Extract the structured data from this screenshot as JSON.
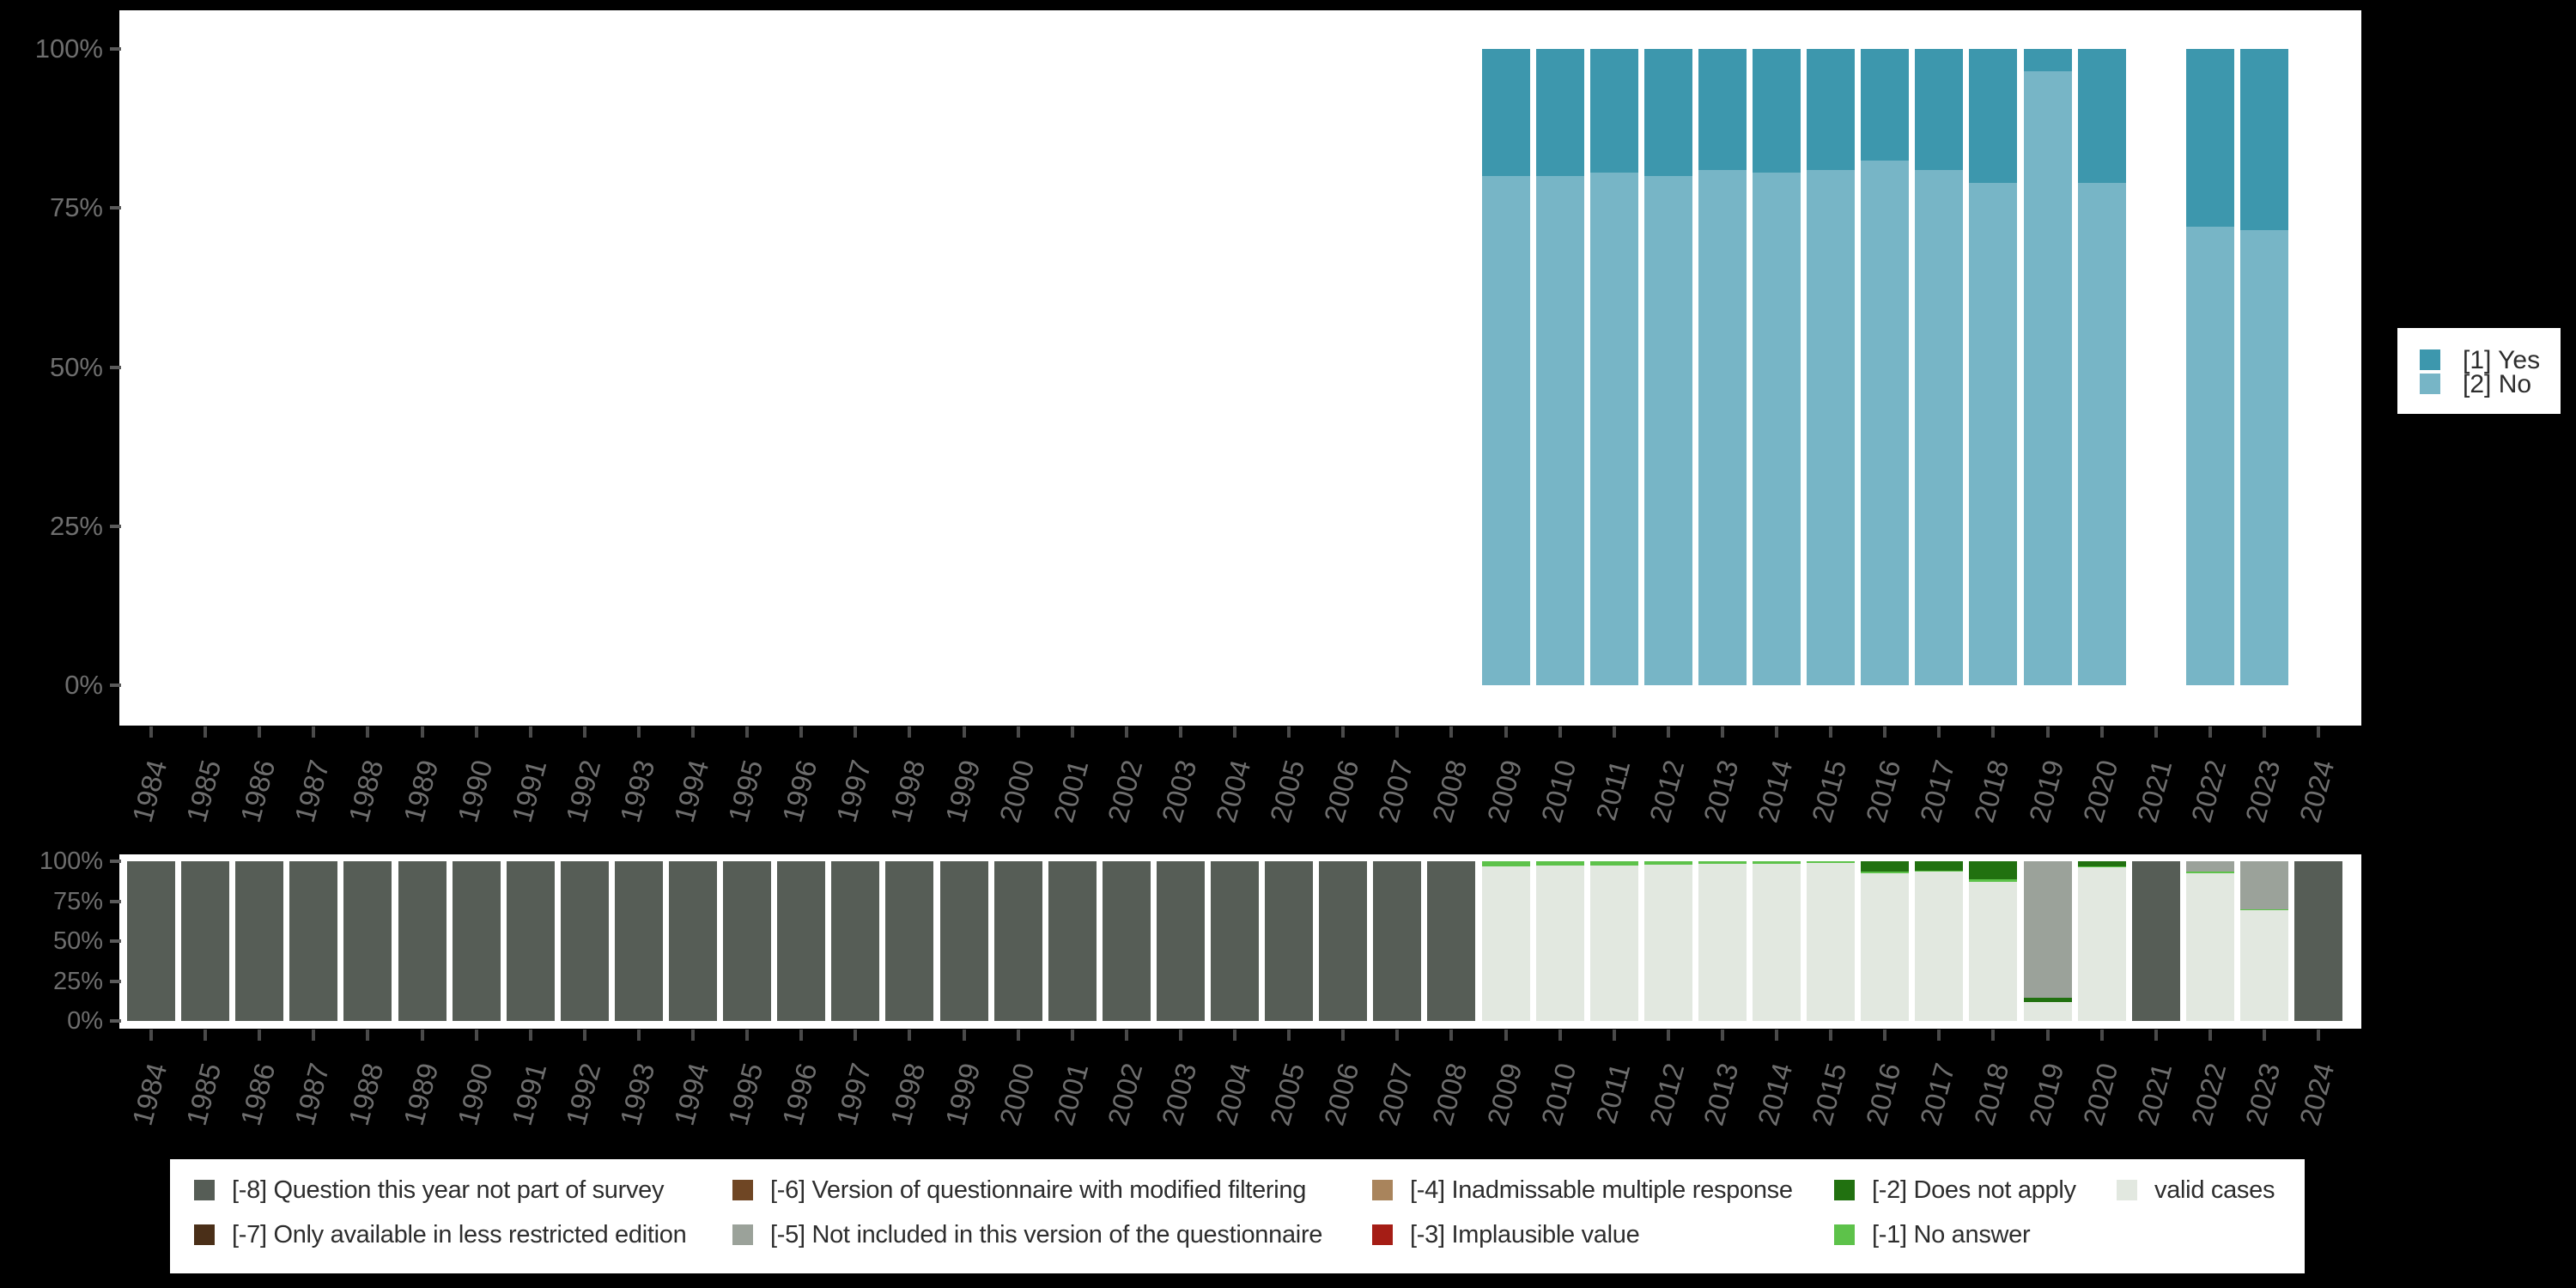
{
  "page": {
    "background": "#000000"
  },
  "colors": {
    "yes": "#3d97ad",
    "no": "#77b5c6",
    "-8": "#565d56",
    "-7": "#4a2f18",
    "-6": "#6f4624",
    "-5": "#9ba29a",
    "-4": "#a9845c",
    "-3": "#a51d15",
    "-2": "#217110",
    "-1": "#5dc24a",
    "valid": "#e2e8e0"
  },
  "years": [
    1984,
    1985,
    1986,
    1987,
    1988,
    1989,
    1990,
    1991,
    1992,
    1993,
    1994,
    1995,
    1996,
    1997,
    1998,
    1999,
    2000,
    2001,
    2002,
    2003,
    2004,
    2005,
    2006,
    2007,
    2008,
    2009,
    2010,
    2011,
    2012,
    2013,
    2014,
    2015,
    2016,
    2017,
    2018,
    2019,
    2020,
    2021,
    2022,
    2023,
    2024
  ],
  "legend_top": {
    "items": [
      {
        "label": "[1] Yes",
        "key": "yes"
      },
      {
        "label": "[2] No",
        "key": "no"
      }
    ]
  },
  "legend_bottom": {
    "items": [
      {
        "label": "[-8] Question this year not part of survey",
        "key": "-8",
        "col": 0,
        "row": 0
      },
      {
        "label": "[-7] Only available in less restricted edition",
        "key": "-7",
        "col": 0,
        "row": 1
      },
      {
        "label": "[-6] Version of questionnaire with modified filtering",
        "key": "-6",
        "col": 1,
        "row": 0
      },
      {
        "label": "[-5] Not included in this version of the questionnaire",
        "key": "-5",
        "col": 1,
        "row": 1
      },
      {
        "label": "[-4] Inadmissable multiple response",
        "key": "-4",
        "col": 2,
        "row": 0
      },
      {
        "label": "[-3] Implausible value",
        "key": "-3",
        "col": 2,
        "row": 1
      },
      {
        "label": "[-2] Does not apply",
        "key": "-2",
        "col": 3,
        "row": 0
      },
      {
        "label": "[-1] No answer",
        "key": "-1",
        "col": 3,
        "row": 1
      },
      {
        "label": "valid cases",
        "key": "valid",
        "col": 4,
        "row": 0
      }
    ]
  },
  "chart_data": [
    {
      "type": "bar",
      "stacked": true,
      "unit": "percent",
      "title": "",
      "xlabel": "",
      "ylabel": "",
      "ylim": [
        0,
        100
      ],
      "grid": false,
      "legend_position": "right",
      "y_tick_labels": [
        "100%",
        "75%",
        "50%",
        "25%",
        "0%"
      ],
      "categories": [
        1984,
        1985,
        1986,
        1987,
        1988,
        1989,
        1990,
        1991,
        1992,
        1993,
        1994,
        1995,
        1996,
        1997,
        1998,
        1999,
        2000,
        2001,
        2002,
        2003,
        2004,
        2005,
        2006,
        2007,
        2008,
        2009,
        2010,
        2011,
        2012,
        2013,
        2014,
        2015,
        2016,
        2017,
        2018,
        2019,
        2020,
        2021,
        2022,
        2023,
        2024
      ],
      "series": [
        {
          "name": "[1] Yes",
          "key": "yes",
          "values": [
            null,
            null,
            null,
            null,
            null,
            null,
            null,
            null,
            null,
            null,
            null,
            null,
            null,
            null,
            null,
            null,
            null,
            null,
            null,
            null,
            null,
            null,
            null,
            null,
            null,
            20,
            20,
            19.5,
            20,
            19,
            19.5,
            19,
            17.5,
            19,
            21,
            3.5,
            21,
            null,
            28,
            28.5,
            null
          ]
        },
        {
          "name": "[2] No",
          "key": "no",
          "values": [
            null,
            null,
            null,
            null,
            null,
            null,
            null,
            null,
            null,
            null,
            null,
            null,
            null,
            null,
            null,
            null,
            null,
            null,
            null,
            null,
            null,
            null,
            null,
            null,
            null,
            80,
            80,
            80.5,
            80,
            81,
            80.5,
            81,
            82.5,
            81,
            79,
            96.5,
            79,
            null,
            72,
            71.5,
            null
          ]
        }
      ]
    },
    {
      "type": "bar",
      "stacked": true,
      "unit": "percent",
      "title": "",
      "xlabel": "",
      "ylabel": "",
      "ylim": [
        0,
        100
      ],
      "grid": false,
      "legend_position": "bottom",
      "y_tick_labels": [
        "100%",
        "75%",
        "50%",
        "25%",
        "0%"
      ],
      "categories": [
        1984,
        1985,
        1986,
        1987,
        1988,
        1989,
        1990,
        1991,
        1992,
        1993,
        1994,
        1995,
        1996,
        1997,
        1998,
        1999,
        2000,
        2001,
        2002,
        2003,
        2004,
        2005,
        2006,
        2007,
        2008,
        2009,
        2010,
        2011,
        2012,
        2013,
        2014,
        2015,
        2016,
        2017,
        2018,
        2019,
        2020,
        2021,
        2022,
        2023,
        2024
      ],
      "bars": [
        {
          "year": 1984,
          "segments": [
            {
              "key": "-8",
              "pct": 100
            }
          ]
        },
        {
          "year": 1985,
          "segments": [
            {
              "key": "-8",
              "pct": 100
            }
          ]
        },
        {
          "year": 1986,
          "segments": [
            {
              "key": "-8",
              "pct": 100
            }
          ]
        },
        {
          "year": 1987,
          "segments": [
            {
              "key": "-8",
              "pct": 100
            }
          ]
        },
        {
          "year": 1988,
          "segments": [
            {
              "key": "-8",
              "pct": 100
            }
          ]
        },
        {
          "year": 1989,
          "segments": [
            {
              "key": "-8",
              "pct": 100
            }
          ]
        },
        {
          "year": 1990,
          "segments": [
            {
              "key": "-8",
              "pct": 100
            }
          ]
        },
        {
          "year": 1991,
          "segments": [
            {
              "key": "-8",
              "pct": 100
            }
          ]
        },
        {
          "year": 1992,
          "segments": [
            {
              "key": "-8",
              "pct": 100
            }
          ]
        },
        {
          "year": 1993,
          "segments": [
            {
              "key": "-8",
              "pct": 100
            }
          ]
        },
        {
          "year": 1994,
          "segments": [
            {
              "key": "-8",
              "pct": 100
            }
          ]
        },
        {
          "year": 1995,
          "segments": [
            {
              "key": "-8",
              "pct": 100
            }
          ]
        },
        {
          "year": 1996,
          "segments": [
            {
              "key": "-8",
              "pct": 100
            }
          ]
        },
        {
          "year": 1997,
          "segments": [
            {
              "key": "-8",
              "pct": 100
            }
          ]
        },
        {
          "year": 1998,
          "segments": [
            {
              "key": "-8",
              "pct": 100
            }
          ]
        },
        {
          "year": 1999,
          "segments": [
            {
              "key": "-8",
              "pct": 100
            }
          ]
        },
        {
          "year": 2000,
          "segments": [
            {
              "key": "-8",
              "pct": 100
            }
          ]
        },
        {
          "year": 2001,
          "segments": [
            {
              "key": "-8",
              "pct": 100
            }
          ]
        },
        {
          "year": 2002,
          "segments": [
            {
              "key": "-8",
              "pct": 100
            }
          ]
        },
        {
          "year": 2003,
          "segments": [
            {
              "key": "-8",
              "pct": 100
            }
          ]
        },
        {
          "year": 2004,
          "segments": [
            {
              "key": "-8",
              "pct": 100
            }
          ]
        },
        {
          "year": 2005,
          "segments": [
            {
              "key": "-8",
              "pct": 100
            }
          ]
        },
        {
          "year": 2006,
          "segments": [
            {
              "key": "-8",
              "pct": 100
            }
          ]
        },
        {
          "year": 2007,
          "segments": [
            {
              "key": "-8",
              "pct": 100
            }
          ]
        },
        {
          "year": 2008,
          "segments": [
            {
              "key": "-8",
              "pct": 100
            }
          ]
        },
        {
          "year": 2009,
          "segments": [
            {
              "key": "-1",
              "pct": 3.0
            },
            {
              "key": "valid",
              "pct": 97.0
            }
          ]
        },
        {
          "year": 2010,
          "segments": [
            {
              "key": "-1",
              "pct": 2.7
            },
            {
              "key": "valid",
              "pct": 97.3
            }
          ]
        },
        {
          "year": 2011,
          "segments": [
            {
              "key": "-1",
              "pct": 2.6
            },
            {
              "key": "valid",
              "pct": 97.4
            }
          ]
        },
        {
          "year": 2012,
          "segments": [
            {
              "key": "-1",
              "pct": 2.2
            },
            {
              "key": "valid",
              "pct": 97.8
            }
          ]
        },
        {
          "year": 2013,
          "segments": [
            {
              "key": "-1",
              "pct": 1.7
            },
            {
              "key": "valid",
              "pct": 98.3
            }
          ]
        },
        {
          "year": 2014,
          "segments": [
            {
              "key": "-1",
              "pct": 1.6
            },
            {
              "key": "valid",
              "pct": 98.4
            }
          ]
        },
        {
          "year": 2015,
          "segments": [
            {
              "key": "-1",
              "pct": 1.2
            },
            {
              "key": "valid",
              "pct": 98.8
            }
          ]
        },
        {
          "year": 2016,
          "segments": [
            {
              "key": "-2",
              "pct": 6.3
            },
            {
              "key": "-1",
              "pct": 1.1
            },
            {
              "key": "valid",
              "pct": 92.6
            }
          ]
        },
        {
          "year": 2017,
          "segments": [
            {
              "key": "-2",
              "pct": 5.7
            },
            {
              "key": "-1",
              "pct": 1.0
            },
            {
              "key": "valid",
              "pct": 93.3
            }
          ]
        },
        {
          "year": 2018,
          "segments": [
            {
              "key": "-2",
              "pct": 11.3
            },
            {
              "key": "-1",
              "pct": 1.6
            },
            {
              "key": "valid",
              "pct": 87.1
            }
          ]
        },
        {
          "year": 2019,
          "segments": [
            {
              "key": "-5",
              "pct": 85.5
            },
            {
              "key": "-2",
              "pct": 2.9
            },
            {
              "key": "valid",
              "pct": 11.6
            }
          ]
        },
        {
          "year": 2020,
          "segments": [
            {
              "key": "-2",
              "pct": 3.0
            },
            {
              "key": "-1",
              "pct": 0.9
            },
            {
              "key": "valid",
              "pct": 96.1
            }
          ]
        },
        {
          "year": 2021,
          "segments": [
            {
              "key": "-8",
              "pct": 100
            }
          ]
        },
        {
          "year": 2022,
          "segments": [
            {
              "key": "-5",
              "pct": 6.6
            },
            {
              "key": "-1",
              "pct": 0.9
            },
            {
              "key": "valid",
              "pct": 92.5
            }
          ]
        },
        {
          "year": 2023,
          "segments": [
            {
              "key": "-5",
              "pct": 30.0
            },
            {
              "key": "-1",
              "pct": 0.9
            },
            {
              "key": "valid",
              "pct": 69.1
            }
          ]
        },
        {
          "year": 2024,
          "segments": [
            {
              "key": "-8",
              "pct": 100
            }
          ]
        }
      ]
    }
  ]
}
